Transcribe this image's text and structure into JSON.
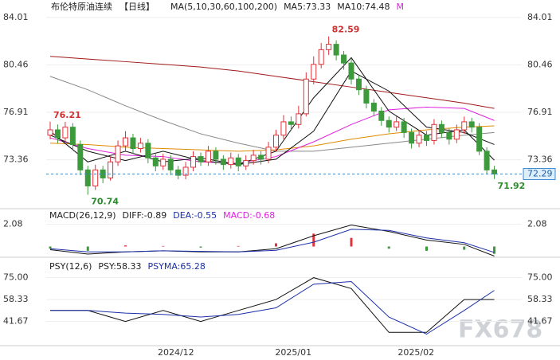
{
  "chart_data": {
    "type": "candlestick",
    "title": "布伦特原油连续",
    "period": "【日线】",
    "header": [
      {
        "text": "MA(5,10,30,60,100,200)",
        "color": "#222222"
      },
      {
        "text": "MA5:73.33",
        "color": "#222222"
      },
      {
        "text": "MA10:74.48",
        "color": "#222222"
      },
      {
        "text": "M",
        "color": "#e020e0"
      }
    ],
    "up_color": "#e0323a",
    "down_color": "#3c9a3c",
    "ylim": [
      69.7,
      84.6
    ],
    "yticks": [
      73.36,
      76.91,
      80.46,
      84.01
    ],
    "last_price": 72.29,
    "date_labels": [
      "2024/12",
      "2025/01",
      "2025/02"
    ],
    "candles": {
      "open": [
        75.2,
        75.6,
        75.0,
        75.8,
        74.5,
        72.6,
        71.4,
        72.6,
        72.0,
        73.2,
        74.4,
        75.0,
        74.2,
        74.6,
        73.5,
        72.9,
        73.4,
        72.6,
        72.2,
        72.8,
        73.6,
        73.2,
        74.0,
        73.4,
        73.0,
        73.5,
        72.9,
        73.3,
        73.7,
        73.4,
        74.3,
        75.2,
        76.2,
        76.0,
        76.8,
        79.4,
        80.5,
        81.6,
        82.0,
        81.2,
        80.6,
        79.4,
        78.6,
        77.6,
        77.0,
        76.3,
        75.8,
        76.2,
        75.4,
        74.6,
        75.2,
        74.8,
        76.0,
        75.4,
        74.9,
        75.6,
        76.2,
        75.8,
        74.0,
        72.6
      ],
      "high": [
        76.21,
        76.0,
        76.2,
        76.1,
        74.8,
        72.9,
        73.0,
        72.9,
        73.6,
        74.8,
        75.5,
        75.3,
        75.0,
        74.9,
        73.8,
        73.8,
        73.7,
        72.9,
        73.2,
        74.0,
        73.9,
        74.4,
        74.3,
        73.7,
        73.9,
        73.8,
        73.7,
        74.1,
        74.0,
        74.7,
        75.6,
        76.7,
        76.6,
        77.4,
        79.9,
        81.1,
        82.1,
        82.59,
        82.3,
        81.5,
        80.9,
        79.7,
        78.9,
        77.9,
        77.3,
        76.6,
        76.6,
        76.5,
        75.7,
        75.6,
        75.5,
        76.4,
        76.3,
        75.7,
        76.0,
        76.6,
        76.5,
        76.1,
        74.3,
        72.9
      ],
      "low": [
        74.9,
        74.6,
        74.7,
        74.1,
        72.2,
        70.74,
        71.1,
        71.6,
        71.8,
        72.9,
        74.0,
        73.8,
        73.9,
        73.1,
        72.5,
        72.6,
        72.2,
        71.9,
        71.9,
        72.5,
        72.9,
        72.9,
        73.0,
        72.6,
        72.7,
        72.5,
        72.6,
        73.0,
        73.0,
        73.1,
        74.0,
        74.9,
        75.6,
        75.7,
        76.6,
        79.0,
        80.2,
        81.2,
        80.8,
        80.1,
        79.0,
        78.2,
        77.2,
        76.6,
        75.9,
        75.4,
        75.5,
        75.0,
        74.2,
        74.3,
        74.4,
        74.5,
        75.0,
        74.5,
        74.6,
        75.3,
        75.4,
        73.7,
        72.3,
        71.92
      ],
      "close": [
        75.6,
        75.0,
        75.8,
        74.5,
        72.6,
        71.4,
        72.6,
        72.0,
        73.2,
        74.4,
        75.0,
        74.2,
        74.6,
        73.5,
        72.9,
        73.4,
        72.6,
        72.2,
        72.8,
        73.6,
        73.2,
        74.0,
        73.4,
        73.0,
        73.5,
        72.9,
        73.3,
        73.7,
        73.4,
        74.3,
        75.2,
        76.2,
        76.0,
        76.8,
        79.4,
        80.5,
        81.6,
        82.0,
        81.2,
        80.6,
        79.4,
        78.6,
        77.6,
        77.0,
        76.3,
        75.8,
        76.2,
        75.4,
        74.6,
        75.2,
        74.8,
        76.0,
        75.4,
        74.9,
        75.6,
        76.2,
        75.8,
        74.0,
        72.6,
        72.29
      ]
    },
    "annotations": [
      {
        "value": 82.59,
        "color": "#d03030"
      },
      {
        "value": 76.21,
        "color": "#d03030"
      },
      {
        "value": 70.74,
        "color": "#2e8b2e"
      },
      {
        "value": 71.92,
        "color": "#2e8b2e"
      }
    ],
    "ma_x": [
      0,
      5,
      10,
      15,
      20,
      25,
      30,
      35,
      40,
      45,
      50,
      55,
      59
    ],
    "ma_lines": [
      {
        "color": "#a01818",
        "values": [
          81.1,
          80.9,
          80.7,
          80.5,
          80.3,
          80.0,
          79.6,
          79.2,
          78.8,
          78.4,
          78.0,
          77.6,
          77.2
        ]
      },
      {
        "color": "#888888",
        "values": [
          79.6,
          78.6,
          77.4,
          76.3,
          75.3,
          74.6,
          74.0,
          74.0,
          74.3,
          74.6,
          74.9,
          75.2,
          75.4
        ]
      },
      {
        "color": "#e08a00",
        "values": [
          74.6,
          74.5,
          74.3,
          74.2,
          74.1,
          74.0,
          74.1,
          74.4,
          74.9,
          75.3,
          75.6,
          75.8,
          75.9
        ]
      },
      {
        "color": "#e020e0",
        "values": [
          75.0,
          74.2,
          73.7,
          73.6,
          73.2,
          73.1,
          73.6,
          74.7,
          76.0,
          77.1,
          77.3,
          77.2,
          76.3
        ]
      },
      {
        "color": "#111111",
        "values": [
          75.2,
          74.0,
          73.3,
          74.0,
          73.3,
          73.0,
          73.4,
          75.5,
          80.0,
          78.5,
          75.8,
          75.4,
          74.5
        ]
      },
      {
        "color": "#111111",
        "values": [
          75.5,
          73.2,
          74.0,
          73.2,
          73.5,
          73.0,
          74.0,
          78.0,
          81.0,
          77.0,
          75.2,
          75.6,
          73.33
        ]
      }
    ],
    "macd": {
      "header": [
        {
          "text": "MACD(26,12,9)",
          "color": "#222222"
        },
        {
          "text": "DIFF:-0.89",
          "color": "#222222"
        },
        {
          "text": "DEA:-0.55",
          "color": "#1a2fa8"
        },
        {
          "text": "MACD:-0.68",
          "color": "#e020e0"
        }
      ],
      "ylim": [
        -1.0,
        3.3
      ],
      "yticks": [
        2.08
      ],
      "diff": [
        -0.3,
        -0.7,
        -0.5,
        -0.4,
        -0.5,
        -0.5,
        -0.2,
        1.0,
        2.0,
        1.4,
        0.6,
        0.2,
        -0.89
      ],
      "dea": [
        -0.2,
        -0.5,
        -0.5,
        -0.4,
        -0.45,
        -0.5,
        -0.35,
        0.4,
        1.6,
        1.5,
        0.8,
        0.35,
        -0.55
      ],
      "hist": [
        -0.2,
        -0.4,
        0.1,
        0.05,
        -0.1,
        0.05,
        0.3,
        1.2,
        0.8,
        -0.2,
        -0.4,
        -0.3,
        -0.68
      ]
    },
    "psy": {
      "header": [
        {
          "text": "PSY(12,6)",
          "color": "#222222"
        },
        {
          "text": "PSY:58.33",
          "color": "#222222"
        },
        {
          "text": "PSYMA:65.28",
          "color": "#1a2fa8"
        }
      ],
      "ylim": [
        23.2,
        88.7
      ],
      "yticks": [
        {
          "value": 41.67,
          "label": "41.67"
        },
        {
          "value": 58.33,
          "label": "58.33"
        },
        {
          "value": 75,
          "label": "75.00"
        }
      ],
      "psy": [
        50,
        50,
        41.67,
        50,
        41.67,
        50,
        58.33,
        75,
        66.67,
        33.33,
        33.33,
        58.33,
        58.33
      ],
      "psyma": [
        50,
        50,
        48,
        47,
        45,
        47,
        52,
        70,
        72,
        45,
        32,
        50,
        65.28
      ]
    },
    "watermark": "FX678"
  }
}
